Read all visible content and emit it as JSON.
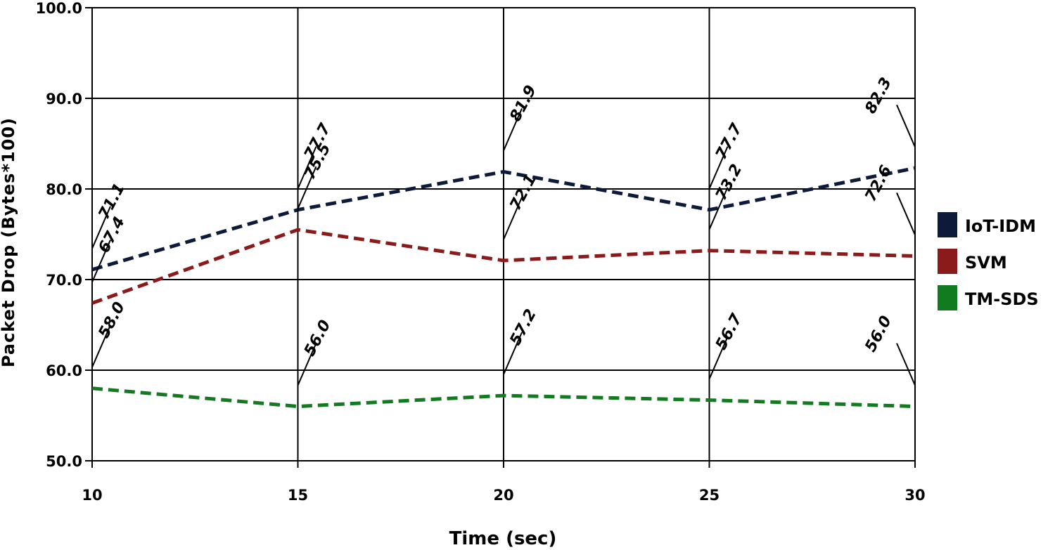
{
  "chart_data": {
    "type": "line",
    "xlabel": "Time (sec)",
    "ylabel": "Packet Drop (Bytes*100)",
    "x": [
      10,
      15,
      20,
      25,
      30
    ],
    "xticks": [
      "10",
      "15",
      "20",
      "25",
      "30"
    ],
    "ylim": [
      50,
      100
    ],
    "yticks": [
      "50.0",
      "60.0",
      "70.0",
      "80.0",
      "90.0",
      "100.0"
    ],
    "grid": true,
    "legend_position": "right",
    "series": [
      {
        "name": "IoT-IDM",
        "color": "#0d1a3a",
        "values": [
          71.1,
          77.7,
          81.9,
          77.7,
          82.3
        ],
        "labels": [
          "71.1",
          "77.7",
          "81.9",
          "77.7",
          "82.3"
        ]
      },
      {
        "name": "SVM",
        "color": "#8b1a1a",
        "values": [
          67.4,
          75.5,
          72.1,
          73.2,
          72.6
        ],
        "labels": [
          "67.4",
          "75.5",
          "72.1",
          "73.2",
          "72.6"
        ]
      },
      {
        "name": "TM-SDS",
        "color": "#127a1f",
        "values": [
          58.0,
          56.0,
          57.2,
          56.7,
          56.0
        ],
        "labels": [
          "58.0",
          "56.0",
          "57.2",
          "56.7",
          "56.0"
        ]
      }
    ]
  }
}
